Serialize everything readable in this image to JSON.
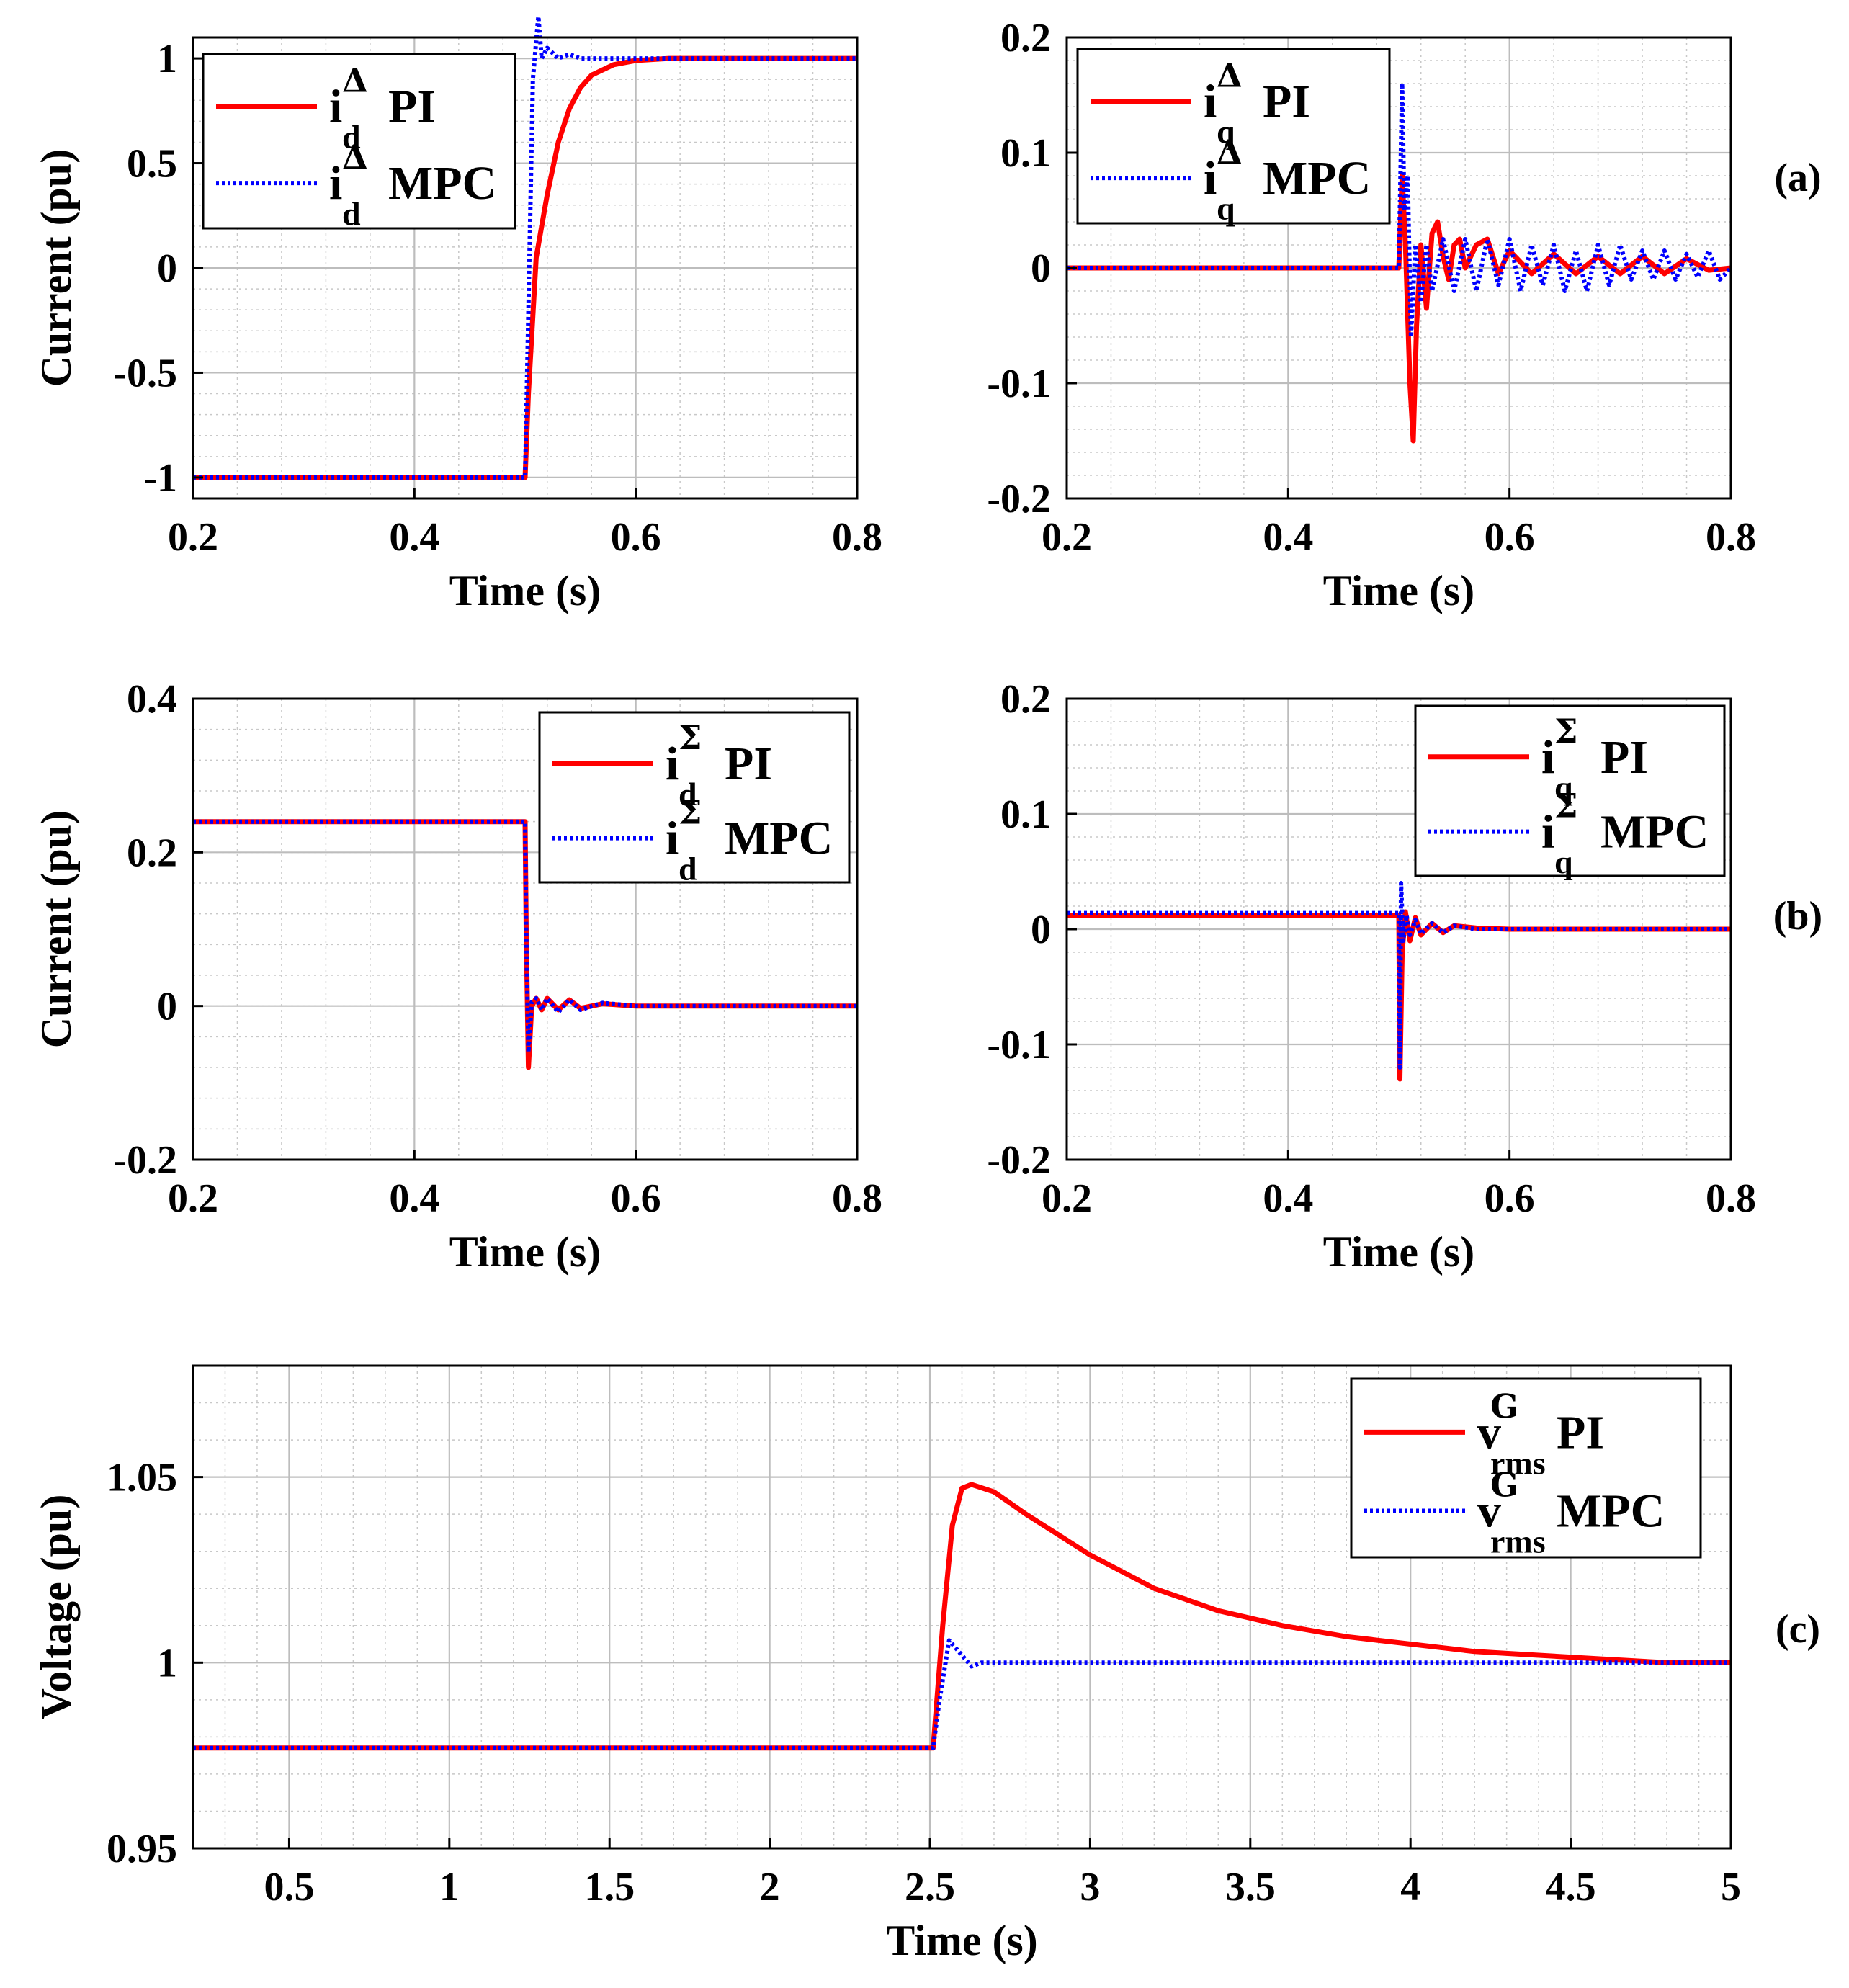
{
  "figure": {
    "panel_labels": [
      "(a)",
      "(b)",
      "(c)"
    ],
    "colors": {
      "pi": "#ff0000",
      "mpc": "#0000ff",
      "grid": "#c8c8c8",
      "axis": "#000000"
    }
  },
  "chart_data": [
    {
      "type": "line",
      "panel": "(a) left",
      "xlabel": "Time (s)",
      "ylabel": "Current (pu)",
      "xlim": [
        0.2,
        0.8
      ],
      "ylim": [
        -1.1,
        1.1
      ],
      "xticks": [
        0.2,
        0.4,
        0.6,
        0.8
      ],
      "xtick_labels": [
        "0.2",
        "0.4",
        "0.6",
        "0.8"
      ],
      "yticks": [
        -1,
        -0.5,
        0,
        0.5,
        1
      ],
      "ytick_labels": [
        "-1",
        "-0.5",
        "0",
        "0.5",
        "1"
      ],
      "legend_position": "top-left",
      "series": [
        {
          "name": "i_d^Δ PI",
          "legend": {
            "base": "i",
            "sub": "d",
            "sup": "Δ",
            "text": "PI"
          },
          "style": "solid",
          "x": [
            0.2,
            0.5,
            0.503,
            0.51,
            0.52,
            0.53,
            0.54,
            0.55,
            0.56,
            0.58,
            0.6,
            0.63,
            0.66,
            0.7,
            0.75,
            0.8
          ],
          "values": [
            -1,
            -1,
            -0.6,
            0.05,
            0.35,
            0.6,
            0.76,
            0.86,
            0.92,
            0.97,
            0.99,
            1.0,
            1.0,
            1.0,
            1.0,
            1.0
          ]
        },
        {
          "name": "i_d^Δ MPC",
          "legend": {
            "base": "i",
            "sub": "d",
            "sup": "Δ",
            "text": "MPC"
          },
          "style": "dotted",
          "x": [
            0.2,
            0.5,
            0.503,
            0.507,
            0.512,
            0.515,
            0.52,
            0.53,
            0.54,
            0.55,
            0.57,
            0.6,
            0.8
          ],
          "values": [
            -1,
            -1,
            -0.2,
            0.9,
            1.2,
            1.0,
            1.05,
            1.0,
            1.02,
            1.0,
            1.0,
            1.0,
            1.0
          ]
        }
      ]
    },
    {
      "type": "line",
      "panel": "(a) right",
      "xlabel": "Time (s)",
      "ylabel": "",
      "xlim": [
        0.2,
        0.8
      ],
      "ylim": [
        -0.2,
        0.2
      ],
      "xticks": [
        0.2,
        0.4,
        0.6,
        0.8
      ],
      "xtick_labels": [
        "0.2",
        "0.4",
        "0.6",
        "0.8"
      ],
      "yticks": [
        -0.2,
        -0.1,
        0,
        0.1,
        0.2
      ],
      "ytick_labels": [
        "-0.2",
        "-0.1",
        "0",
        "0.1",
        "0.2"
      ],
      "legend_position": "top-left",
      "series": [
        {
          "name": "i_q^Δ PI",
          "legend": {
            "base": "i",
            "sub": "q",
            "sup": "Δ",
            "text": "PI"
          },
          "style": "solid",
          "x": [
            0.2,
            0.5,
            0.503,
            0.506,
            0.51,
            0.513,
            0.516,
            0.52,
            0.525,
            0.53,
            0.535,
            0.54,
            0.545,
            0.55,
            0.555,
            0.56,
            0.57,
            0.58,
            0.59,
            0.6,
            0.62,
            0.64,
            0.66,
            0.68,
            0.7,
            0.72,
            0.74,
            0.76,
            0.78,
            0.8
          ],
          "values": [
            0,
            0,
            0.08,
            0.02,
            -0.1,
            -0.15,
            -0.05,
            0.02,
            -0.035,
            0.03,
            0.04,
            0.01,
            -0.01,
            0.02,
            0.025,
            0.0,
            0.02,
            0.025,
            -0.005,
            0.015,
            -0.005,
            0.012,
            -0.005,
            0.01,
            -0.005,
            0.01,
            -0.005,
            0.008,
            -0.002,
            0.0
          ]
        },
        {
          "name": "i_q^Δ MPC",
          "legend": {
            "base": "i",
            "sub": "q",
            "sup": "Δ",
            "text": "MPC"
          },
          "style": "dotted",
          "x": [
            0.2,
            0.5,
            0.503,
            0.505,
            0.508,
            0.511,
            0.515,
            0.52,
            0.525,
            0.53,
            0.54,
            0.55,
            0.56,
            0.57,
            0.58,
            0.59,
            0.6,
            0.61,
            0.62,
            0.63,
            0.64,
            0.65,
            0.66,
            0.67,
            0.68,
            0.69,
            0.7,
            0.71,
            0.72,
            0.73,
            0.74,
            0.75,
            0.76,
            0.77,
            0.78,
            0.79,
            0.8
          ],
          "values": [
            0,
            0,
            0.16,
            0.05,
            0.08,
            -0.06,
            0.02,
            -0.03,
            0.02,
            -0.02,
            0.025,
            -0.02,
            0.025,
            -0.02,
            0.025,
            -0.015,
            0.025,
            -0.02,
            0.02,
            -0.015,
            0.02,
            -0.02,
            0.015,
            -0.02,
            0.02,
            -0.015,
            0.02,
            -0.01,
            0.015,
            -0.01,
            0.015,
            -0.01,
            0.012,
            -0.008,
            0.015,
            -0.01,
            0.0
          ]
        }
      ]
    },
    {
      "type": "line",
      "panel": "(b) left",
      "xlabel": "Time (s)",
      "ylabel": "Current (pu)",
      "xlim": [
        0.2,
        0.8
      ],
      "ylim": [
        -0.2,
        0.4
      ],
      "xticks": [
        0.2,
        0.4,
        0.6,
        0.8
      ],
      "xtick_labels": [
        "0.2",
        "0.4",
        "0.6",
        "0.8"
      ],
      "yticks": [
        -0.2,
        0,
        0.2,
        0.4
      ],
      "ytick_labels": [
        "-0.2",
        "0",
        "0.2",
        "0.4"
      ],
      "legend_position": "top-right",
      "series": [
        {
          "name": "i_d^Σ PI",
          "legend": {
            "base": "i",
            "sub": "d",
            "sup": "Σ",
            "text": "PI"
          },
          "style": "solid",
          "x": [
            0.2,
            0.3,
            0.4,
            0.5,
            0.501,
            0.503,
            0.506,
            0.51,
            0.515,
            0.52,
            0.53,
            0.54,
            0.55,
            0.57,
            0.6,
            0.7,
            0.8
          ],
          "values": [
            0.24,
            0.24,
            0.24,
            0.24,
            0.1,
            -0.08,
            0.0,
            0.01,
            -0.005,
            0.01,
            -0.005,
            0.008,
            -0.003,
            0.003,
            0.0,
            0.0,
            0.0
          ]
        },
        {
          "name": "i_d^Σ MPC",
          "legend": {
            "base": "i",
            "sub": "d",
            "sup": "Σ",
            "text": "MPC"
          },
          "style": "dotted",
          "x": [
            0.2,
            0.3,
            0.4,
            0.5,
            0.501,
            0.503,
            0.506,
            0.51,
            0.515,
            0.52,
            0.53,
            0.54,
            0.55,
            0.57,
            0.6,
            0.7,
            0.8
          ],
          "values": [
            0.24,
            0.24,
            0.24,
            0.24,
            0.1,
            -0.06,
            0.005,
            0.01,
            -0.005,
            0.01,
            -0.008,
            0.008,
            -0.005,
            0.004,
            0.0,
            0.0,
            0.0
          ]
        }
      ]
    },
    {
      "type": "line",
      "panel": "(b) right",
      "xlabel": "Time (s)",
      "ylabel": "",
      "xlim": [
        0.2,
        0.8
      ],
      "ylim": [
        -0.2,
        0.2
      ],
      "xticks": [
        0.2,
        0.4,
        0.6,
        0.8
      ],
      "xtick_labels": [
        "0.2",
        "0.4",
        "0.6",
        "0.8"
      ],
      "yticks": [
        -0.2,
        -0.1,
        0,
        0.1,
        0.2
      ],
      "ytick_labels": [
        "-0.2",
        "-0.1",
        "0",
        "0.1",
        "0.2"
      ],
      "legend_position": "top-right",
      "series": [
        {
          "name": "i_q^Σ PI",
          "legend": {
            "base": "i",
            "sub": "q",
            "sup": "Σ",
            "text": "PI"
          },
          "style": "solid",
          "x": [
            0.2,
            0.3,
            0.4,
            0.5,
            0.501,
            0.503,
            0.506,
            0.51,
            0.515,
            0.52,
            0.53,
            0.54,
            0.55,
            0.57,
            0.6,
            0.7,
            0.8
          ],
          "values": [
            0.012,
            0.012,
            0.012,
            0.012,
            -0.13,
            -0.02,
            0.015,
            -0.01,
            0.01,
            -0.005,
            0.005,
            -0.003,
            0.003,
            0.001,
            0.0,
            0.0,
            0.0
          ]
        },
        {
          "name": "i_q^Σ MPC",
          "legend": {
            "base": "i",
            "sub": "q",
            "sup": "Σ",
            "text": "MPC"
          },
          "style": "dotted",
          "x": [
            0.2,
            0.3,
            0.4,
            0.5,
            0.501,
            0.502,
            0.504,
            0.507,
            0.51,
            0.515,
            0.52,
            0.53,
            0.54,
            0.55,
            0.57,
            0.6,
            0.7,
            0.8
          ],
          "values": [
            0.014,
            0.014,
            0.014,
            0.014,
            -0.12,
            0.04,
            -0.01,
            0.012,
            -0.005,
            0.008,
            -0.004,
            0.005,
            -0.003,
            0.003,
            0.0,
            0.0,
            0.0,
            0.0
          ]
        }
      ]
    },
    {
      "type": "line",
      "panel": "(c)",
      "xlabel": "Time (s)",
      "ylabel": "Voltage (pu)",
      "xlim": [
        0.2,
        5
      ],
      "ylim": [
        0.95,
        1.08
      ],
      "xticks": [
        0.5,
        1,
        1.5,
        2,
        2.5,
        3,
        3.5,
        4,
        4.5,
        5
      ],
      "xtick_labels": [
        "0.5",
        "1",
        "1.5",
        "2",
        "2.5",
        "3",
        "3.5",
        "4",
        "4.5",
        "5"
      ],
      "yticks": [
        0.95,
        1,
        1.05
      ],
      "ytick_labels": [
        "0.95",
        "1",
        "1.05"
      ],
      "legend_position": "top-right",
      "series": [
        {
          "name": "v_rms^G PI",
          "legend": {
            "base": "v",
            "sub": "rms",
            "sup": "G",
            "text": "PI"
          },
          "style": "solid",
          "x": [
            0.2,
            2.51,
            2.54,
            2.57,
            2.6,
            2.63,
            2.7,
            2.8,
            3.0,
            3.2,
            3.4,
            3.6,
            3.8,
            4.0,
            4.2,
            4.4,
            4.6,
            4.8,
            5.0
          ],
          "values": [
            0.977,
            0.977,
            1.01,
            1.037,
            1.047,
            1.048,
            1.046,
            1.04,
            1.029,
            1.02,
            1.014,
            1.01,
            1.007,
            1.005,
            1.003,
            1.002,
            1.001,
            1.0,
            1.0
          ]
        },
        {
          "name": "v_rms^G MPC",
          "legend": {
            "base": "v",
            "sub": "rms",
            "sup": "G",
            "text": "MPC"
          },
          "style": "dotted",
          "x": [
            0.2,
            2.51,
            2.53,
            2.56,
            2.6,
            2.63,
            2.66,
            2.7,
            5.0
          ],
          "values": [
            0.977,
            0.977,
            0.99,
            1.006,
            1.002,
            0.999,
            1.0,
            1.0,
            1.0
          ]
        }
      ]
    }
  ]
}
